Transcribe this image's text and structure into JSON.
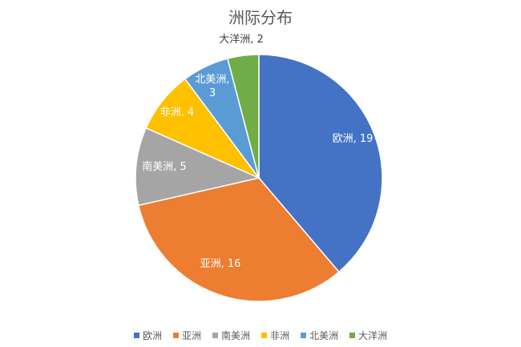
{
  "chart_data": {
    "type": "pie",
    "title": "洲际分布",
    "categories": [
      "欧洲",
      "亚洲",
      "南美洲",
      "非洲",
      "北美洲",
      "大洋洲"
    ],
    "values": [
      19,
      16,
      5,
      4,
      3,
      2
    ],
    "colors": [
      "#4472C4",
      "#ED7D31",
      "#A5A5A5",
      "#FFC000",
      "#5B9BD5",
      "#70AD47"
    ],
    "data_labels": [
      [
        "欧洲, 19"
      ],
      [
        "亚洲, 16"
      ],
      [
        "南美洲, 5"
      ],
      [
        "非洲, 4"
      ],
      [
        "北美洲,",
        "3"
      ],
      [
        "大洋洲, 2"
      ]
    ],
    "legend_position": "bottom"
  }
}
